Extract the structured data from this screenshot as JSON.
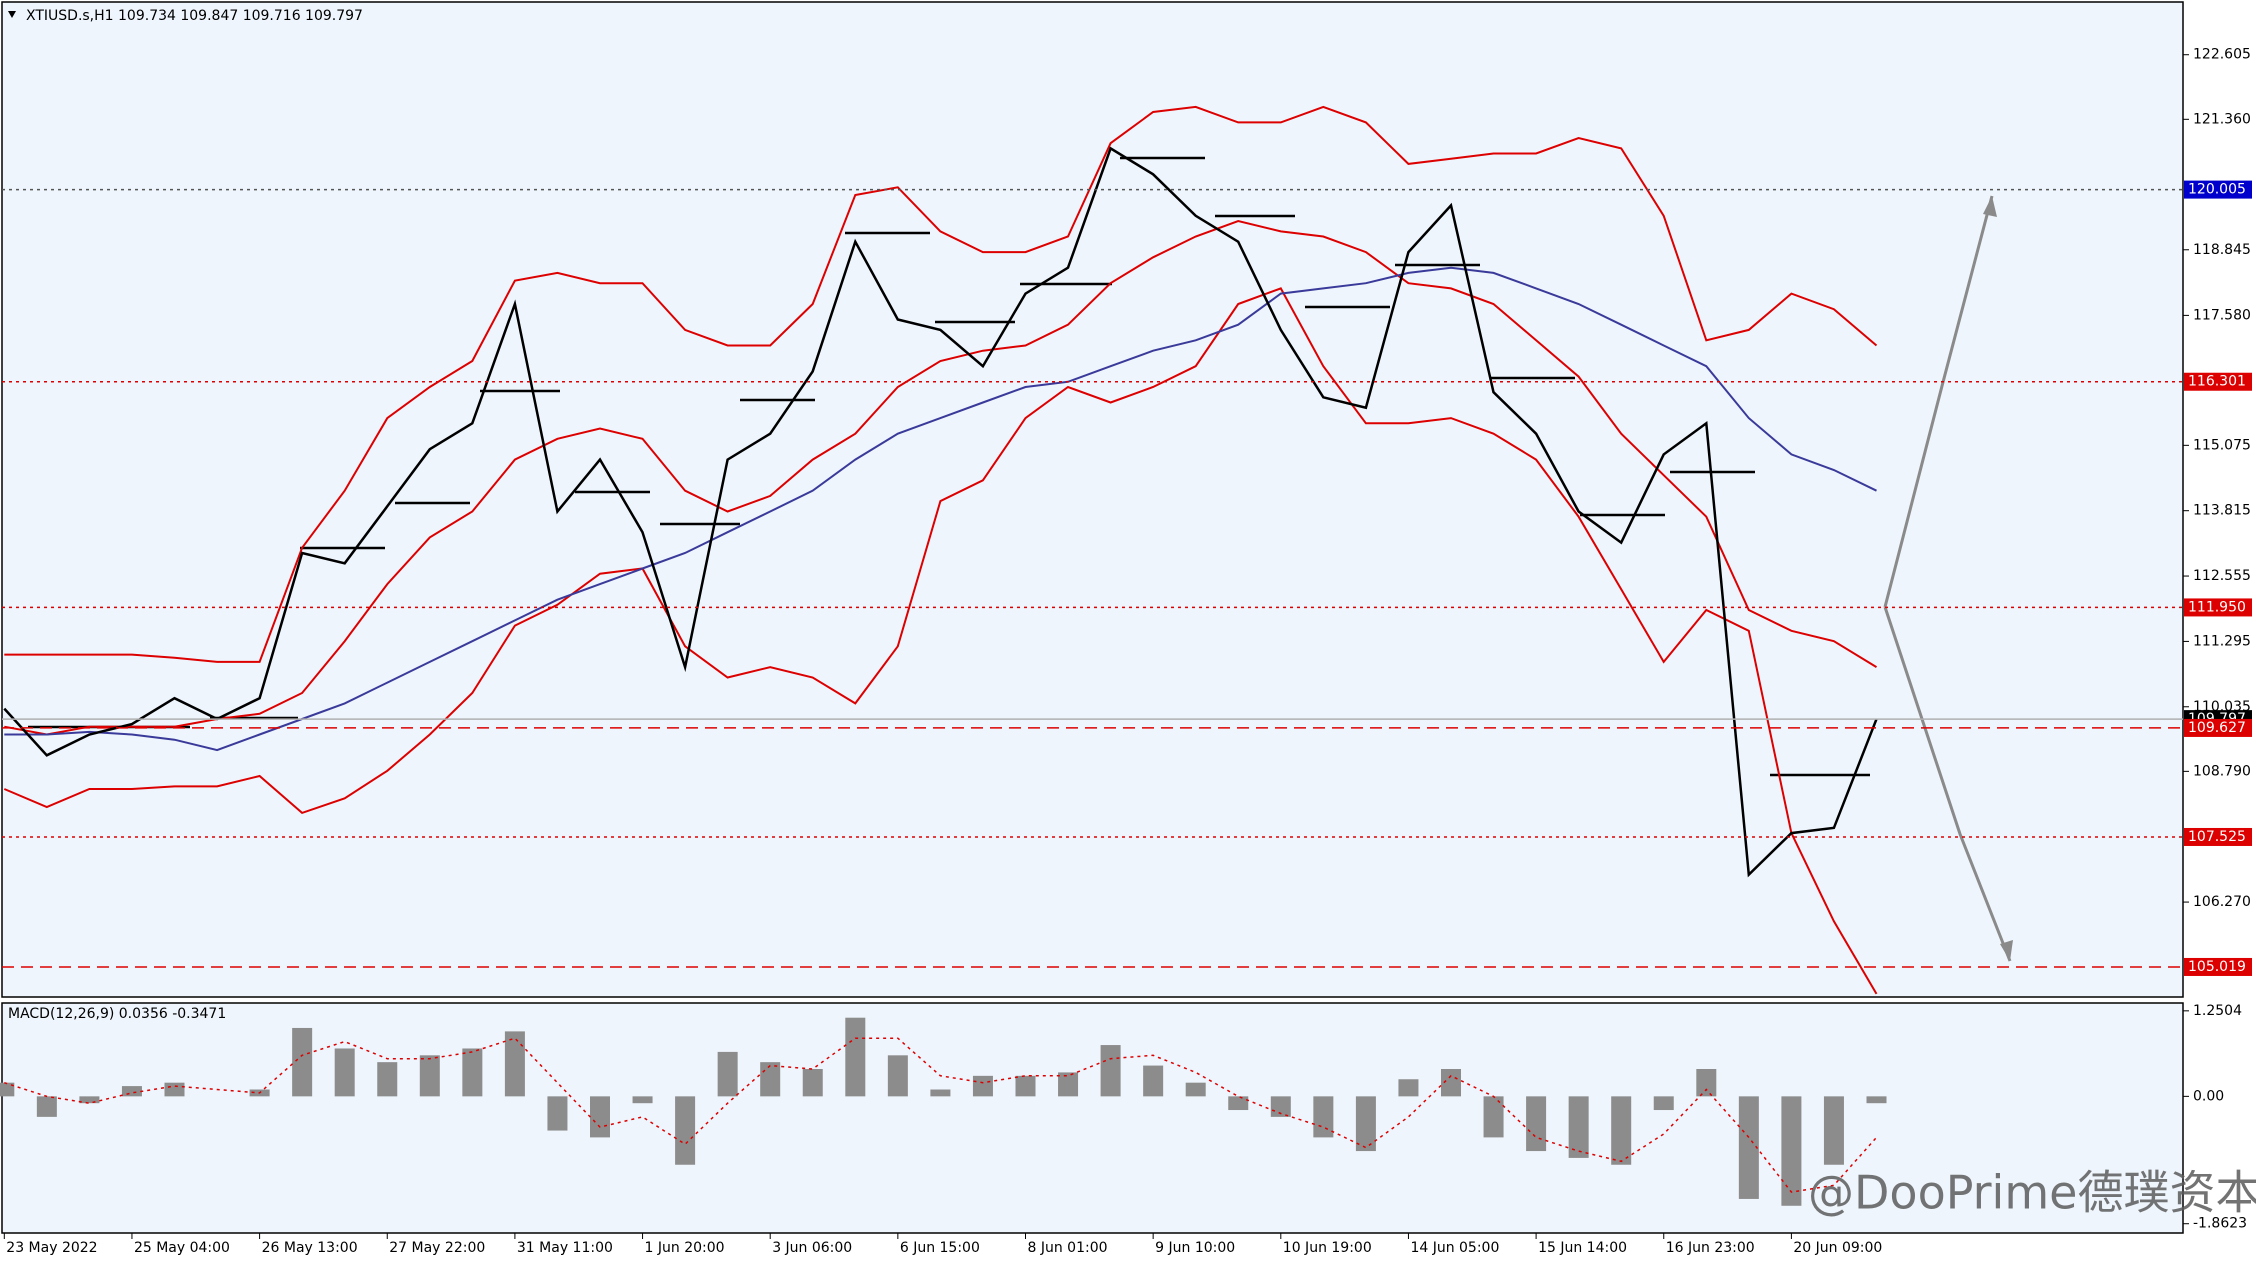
{
  "chart_data": [
    {
      "type": "line",
      "title": "XTIUSD.s,H1  109.734 109.847 109.716 109.797",
      "categories": [
        "23 May 2022",
        null,
        null,
        "25 May 04:00",
        null,
        null,
        "26 May 13:00",
        null,
        null,
        "27 May 22:00",
        null,
        null,
        "31 May 11:00",
        null,
        null,
        "1 Jun 20:00",
        null,
        null,
        "3 Jun 06:00",
        null,
        null,
        "6 Jun 15:00",
        null,
        null,
        "8 Jun 01:00",
        null,
        null,
        "9 Jun 10:00",
        null,
        null,
        "10 Jun 19:00",
        null,
        null,
        "14 Jun 05:00",
        null,
        null,
        "15 Jun 14:00",
        null,
        null,
        "16 Jun 23:00",
        null,
        null,
        "20 Jun 09:00",
        null,
        null
      ],
      "series": [
        {
          "color": "#dd0000",
          "values": [
            111.04,
            111.04,
            111.04,
            111.04,
            110.98,
            110.9,
            110.9,
            113.1,
            114.2,
            115.6,
            116.2,
            116.7,
            118.25,
            118.4,
            118.2,
            118.2,
            117.3,
            117.0,
            117.0,
            117.8,
            119.9,
            120.05,
            119.2,
            118.8,
            118.8,
            119.1,
            120.9,
            121.5,
            121.6,
            121.3,
            121.3,
            121.6,
            121.3,
            120.5,
            120.6,
            120.7,
            120.7,
            121.0,
            120.8,
            119.5,
            117.1,
            117.3,
            118.0,
            117.7,
            117.0
          ]
        },
        {
          "color": "#dd0000",
          "values": [
            109.65,
            109.5,
            109.65,
            109.65,
            109.65,
            109.8,
            109.9,
            110.3,
            111.3,
            112.4,
            113.3,
            113.8,
            114.8,
            115.2,
            115.4,
            115.2,
            114.2,
            113.8,
            114.1,
            114.8,
            115.3,
            116.2,
            116.7,
            116.9,
            117.0,
            117.4,
            118.2,
            118.7,
            119.1,
            119.4,
            119.2,
            119.1,
            118.8,
            118.2,
            118.1,
            117.8,
            117.1,
            116.4,
            115.3,
            114.5,
            113.7,
            111.9,
            111.5,
            111.3,
            110.8
          ]
        },
        {
          "color": "#dd0000",
          "values": [
            108.45,
            108.1,
            108.45,
            108.45,
            108.5,
            108.5,
            108.7,
            107.99,
            108.27,
            108.8,
            109.5,
            110.3,
            111.6,
            112.0,
            112.6,
            112.7,
            111.2,
            110.6,
            110.8,
            110.6,
            110.1,
            111.2,
            114.0,
            114.4,
            115.6,
            116.2,
            115.9,
            116.2,
            116.6,
            117.8,
            118.1,
            116.6,
            115.5,
            115.5,
            115.6,
            115.3,
            114.8,
            113.7,
            112.3,
            110.9,
            111.9,
            111.5,
            107.6,
            105.9,
            104.5
          ]
        },
        {
          "color": "#3a3a9a",
          "values": [
            109.5,
            109.5,
            109.55,
            109.5,
            109.4,
            109.2,
            109.5,
            109.8,
            110.1,
            110.5,
            110.9,
            111.3,
            111.7,
            112.1,
            112.4,
            112.7,
            113.0,
            113.4,
            113.8,
            114.2,
            114.8,
            115.3,
            115.6,
            115.9,
            116.2,
            116.3,
            116.6,
            116.9,
            117.1,
            117.4,
            118.0,
            118.1,
            118.2,
            118.4,
            118.5,
            118.4,
            118.1,
            117.8,
            117.4,
            117.0,
            116.6,
            115.6,
            114.9,
            114.6,
            114.2
          ]
        },
        {
          "color": "#000000",
          "values": [
            110.0,
            109.1,
            109.5,
            109.7,
            110.2,
            109.8,
            110.2,
            113.0,
            112.8,
            113.9,
            115.0,
            115.5,
            117.8,
            113.8,
            114.8,
            113.4,
            110.8,
            114.8,
            115.3,
            116.5,
            119.0,
            117.5,
            117.3,
            116.6,
            118.0,
            118.5,
            120.8,
            120.3,
            119.5,
            119.0,
            117.3,
            116.0,
            115.8,
            118.8,
            119.7,
            116.1,
            115.3,
            113.8,
            113.2,
            114.9,
            115.5,
            106.8,
            107.6,
            107.7,
            109.797
          ]
        }
      ],
      "levels": [
        {
          "value": 120.005,
          "color": "#0000cc",
          "style": "dotted",
          "line_color": "#555555"
        },
        {
          "value": 116.301,
          "color": "#dd0000",
          "style": "dotted"
        },
        {
          "value": 111.95,
          "label": "111.950",
          "color": "#dd0000",
          "style": "dotted"
        },
        {
          "value": 109.797,
          "color": "#000000",
          "style": "solid",
          "line_color": "#b0b0b0"
        },
        {
          "value": 109.627,
          "color": "#dd0000",
          "style": "dashed"
        },
        {
          "value": 107.525,
          "color": "#dd0000",
          "style": "dotted"
        },
        {
          "value": 105.019,
          "color": "#dd0000",
          "style": "dashed"
        }
      ],
      "ylim": [
        104.44,
        123.66
      ],
      "yticks": [
        122.605,
        {
          "value": 121.36,
          "label": "121.360"
        },
        118.845,
        {
          "value": 117.58,
          "label": "117.580"
        },
        115.075,
        113.815,
        112.555,
        111.295,
        110.035,
        {
          "value": 108.79,
          "label": "108.790"
        },
        {
          "value": 106.27,
          "label": "106.270"
        }
      ],
      "grid": false
    },
    {
      "type": "bar",
      "title": "MACD(12,26,9) 0.0356 -0.3471",
      "series": [
        {
          "color": "#8c8c8c",
          "values": [
            0.2,
            -0.3,
            -0.1,
            0.15,
            0.2,
            0.0,
            0.1,
            1.0,
            0.7,
            0.5,
            0.6,
            0.7,
            0.95,
            -0.5,
            -0.6,
            -0.1,
            -1.0,
            0.65,
            0.5,
            0.4,
            1.15,
            0.6,
            0.1,
            0.3,
            0.3,
            0.35,
            0.75,
            0.45,
            0.2,
            -0.2,
            -0.3,
            -0.6,
            -0.8,
            0.25,
            0.4,
            -0.6,
            -0.8,
            -0.9,
            -1.0,
            -0.2,
            0.4,
            -1.5,
            -1.6,
            -1.0,
            -0.1
          ]
        },
        {
          "color": "#dd0000",
          "style": "dotted",
          "values": [
            0.2,
            0.0,
            -0.1,
            0.05,
            0.15,
            0.1,
            0.05,
            0.6,
            0.8,
            0.55,
            0.55,
            0.65,
            0.85,
            0.2,
            -0.45,
            -0.3,
            -0.7,
            -0.1,
            0.45,
            0.4,
            0.85,
            0.85,
            0.3,
            0.2,
            0.3,
            0.3,
            0.55,
            0.6,
            0.35,
            0.0,
            -0.25,
            -0.45,
            -0.75,
            -0.3,
            0.3,
            0.0,
            -0.6,
            -0.8,
            -0.95,
            -0.55,
            0.1,
            -0.6,
            -1.4,
            -1.3,
            -0.6
          ]
        }
      ],
      "ylim": [
        -1.998,
        1.365
      ],
      "yticks": [
        1.2504,
        {
          "value": 0,
          "label": "0.00"
        },
        -1.8623
      ]
    }
  ],
  "watermark": "@DooPrime德璞资本"
}
